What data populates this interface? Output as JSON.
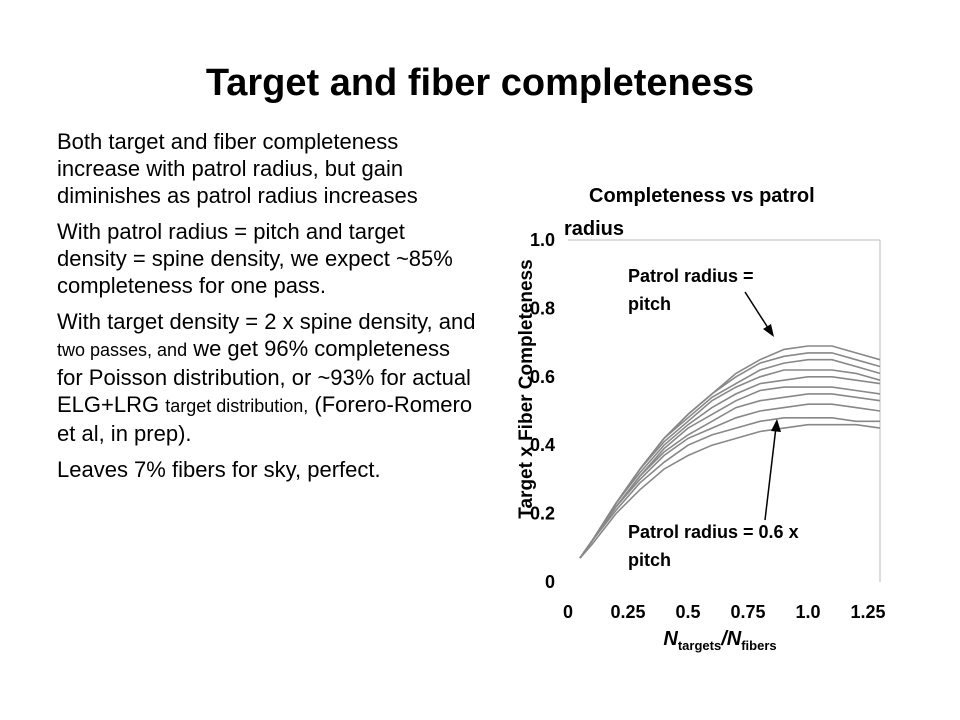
{
  "slide": {
    "title": "Target and fiber completeness",
    "paragraphs": [
      {
        "main": "Both target and fiber completeness increase with patrol radius, but gain diminishes as patrol radius increases"
      },
      {
        "main": "With patrol radius = pitch and target density = spine density, we expect ~85% completeness for one pass."
      },
      {
        "p3a": "With target density = 2 x spine density, and ",
        "p3b": "two passes, and",
        "p3c": " we get 96% completeness for Poisson distribution, or ~93% for actual ELG+LRG ",
        "p3d": "target distribution,",
        "p3e": " (Forero-Romero et al, in prep)."
      },
      {
        "main": "Leaves 7% fibers for sky, perfect."
      }
    ]
  },
  "chart_data": {
    "type": "line",
    "title_line1": "Completeness vs patrol",
    "title_line2": "radius",
    "ylabel": "Target x Fiber Completeness",
    "xlabel_main": "N",
    "xlabel_sub1": "targets",
    "xlabel_slash": "/N",
    "xlabel_sub2": "fibers",
    "xlim": [
      0,
      1.3
    ],
    "ylim": [
      0,
      1.0
    ],
    "x_ticks": [
      "0",
      "0.25",
      "0.5",
      "0.75",
      "1.0",
      "1.25"
    ],
    "y_ticks": [
      "0",
      "0.2",
      "0.4",
      "0.6",
      "0.8",
      "1.0"
    ],
    "annotations": {
      "top_line1": "Patrol radius =",
      "top_line2": "pitch",
      "bottom_line1": "Patrol radius = 0.6 x",
      "bottom_line2": "pitch"
    },
    "x": [
      0.05,
      0.1,
      0.2,
      0.3,
      0.4,
      0.5,
      0.6,
      0.7,
      0.8,
      0.9,
      1.0,
      1.1,
      1.2,
      1.3
    ],
    "series": [
      {
        "values": [
          0.07,
          0.12,
          0.23,
          0.33,
          0.42,
          0.49,
          0.55,
          0.61,
          0.65,
          0.68,
          0.69,
          0.69,
          0.67,
          0.65
        ]
      },
      {
        "values": [
          0.07,
          0.12,
          0.23,
          0.33,
          0.42,
          0.49,
          0.55,
          0.6,
          0.64,
          0.66,
          0.67,
          0.67,
          0.65,
          0.63
        ]
      },
      {
        "values": [
          0.07,
          0.12,
          0.23,
          0.33,
          0.42,
          0.48,
          0.54,
          0.58,
          0.62,
          0.64,
          0.65,
          0.65,
          0.63,
          0.61
        ]
      },
      {
        "values": [
          0.07,
          0.12,
          0.23,
          0.33,
          0.41,
          0.47,
          0.53,
          0.57,
          0.6,
          0.62,
          0.62,
          0.62,
          0.61,
          0.59
        ]
      },
      {
        "values": [
          0.07,
          0.12,
          0.23,
          0.32,
          0.4,
          0.46,
          0.51,
          0.55,
          0.58,
          0.59,
          0.6,
          0.6,
          0.59,
          0.58
        ]
      },
      {
        "values": [
          0.07,
          0.12,
          0.22,
          0.31,
          0.39,
          0.45,
          0.49,
          0.53,
          0.56,
          0.57,
          0.57,
          0.57,
          0.56,
          0.55
        ]
      },
      {
        "values": [
          0.07,
          0.12,
          0.22,
          0.31,
          0.38,
          0.43,
          0.47,
          0.51,
          0.53,
          0.54,
          0.55,
          0.55,
          0.54,
          0.53
        ]
      },
      {
        "values": [
          0.07,
          0.12,
          0.22,
          0.3,
          0.37,
          0.42,
          0.45,
          0.48,
          0.5,
          0.51,
          0.52,
          0.52,
          0.51,
          0.5
        ]
      },
      {
        "values": [
          0.07,
          0.12,
          0.21,
          0.29,
          0.35,
          0.4,
          0.43,
          0.45,
          0.47,
          0.48,
          0.48,
          0.48,
          0.47,
          0.47
        ]
      },
      {
        "values": [
          0.07,
          0.11,
          0.2,
          0.27,
          0.33,
          0.37,
          0.4,
          0.42,
          0.44,
          0.45,
          0.46,
          0.46,
          0.46,
          0.45
        ]
      }
    ],
    "colors": {
      "line": "#888888",
      "arrow": "#000000",
      "frame": "#bbbbbb"
    }
  }
}
